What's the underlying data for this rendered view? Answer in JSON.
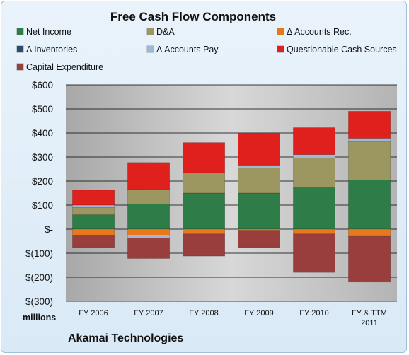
{
  "chart_data": {
    "type": "bar",
    "stacked": true,
    "title": "Free Cash Flow Components",
    "unit_label": "millions",
    "footer": "Akamai Technologies",
    "categories": [
      "FY 2006",
      "FY 2007",
      "FY 2008",
      "FY 2009",
      "FY 2010",
      "FY & TTM 2011"
    ],
    "ylim": [
      -300,
      600
    ],
    "yticks": [
      -300,
      -200,
      -100,
      0,
      100,
      200,
      300,
      400,
      500,
      600
    ],
    "ytick_labels": [
      "$(300)",
      "$(200)",
      "$(100)",
      "$-",
      "$100",
      "$200",
      "$300",
      "$400",
      "$500",
      "$600"
    ],
    "grid": true,
    "legend_position": "top",
    "series": [
      {
        "name": "Net Income",
        "color": "#2e7d48",
        "values": [
          60,
          105,
          150,
          150,
          175,
          205
        ]
      },
      {
        "name": "D&A",
        "color": "#9c9660",
        "values": [
          30,
          60,
          85,
          105,
          120,
          160
        ]
      },
      {
        "name": "Δ Accounts Rec.",
        "color": "#e9781d",
        "values": [
          -25,
          -25,
          -20,
          -5,
          -20,
          -30
        ]
      },
      {
        "name": "Δ Inventories",
        "color": "#2c4a6b",
        "values": [
          0,
          0,
          0,
          0,
          0,
          0
        ]
      },
      {
        "name": "Δ Accounts Pay.",
        "color": "#9fb8d8",
        "values": [
          10,
          -12,
          0,
          8,
          15,
          13
        ]
      },
      {
        "name": "Questionable Cash Sources",
        "color": "#e0201d",
        "values": [
          62,
          112,
          125,
          137,
          112,
          112
        ]
      },
      {
        "name": "Capital Expenditure",
        "color": "#9a3d3d",
        "values": [
          -52,
          -85,
          -92,
          -72,
          -160,
          -190
        ]
      }
    ]
  }
}
